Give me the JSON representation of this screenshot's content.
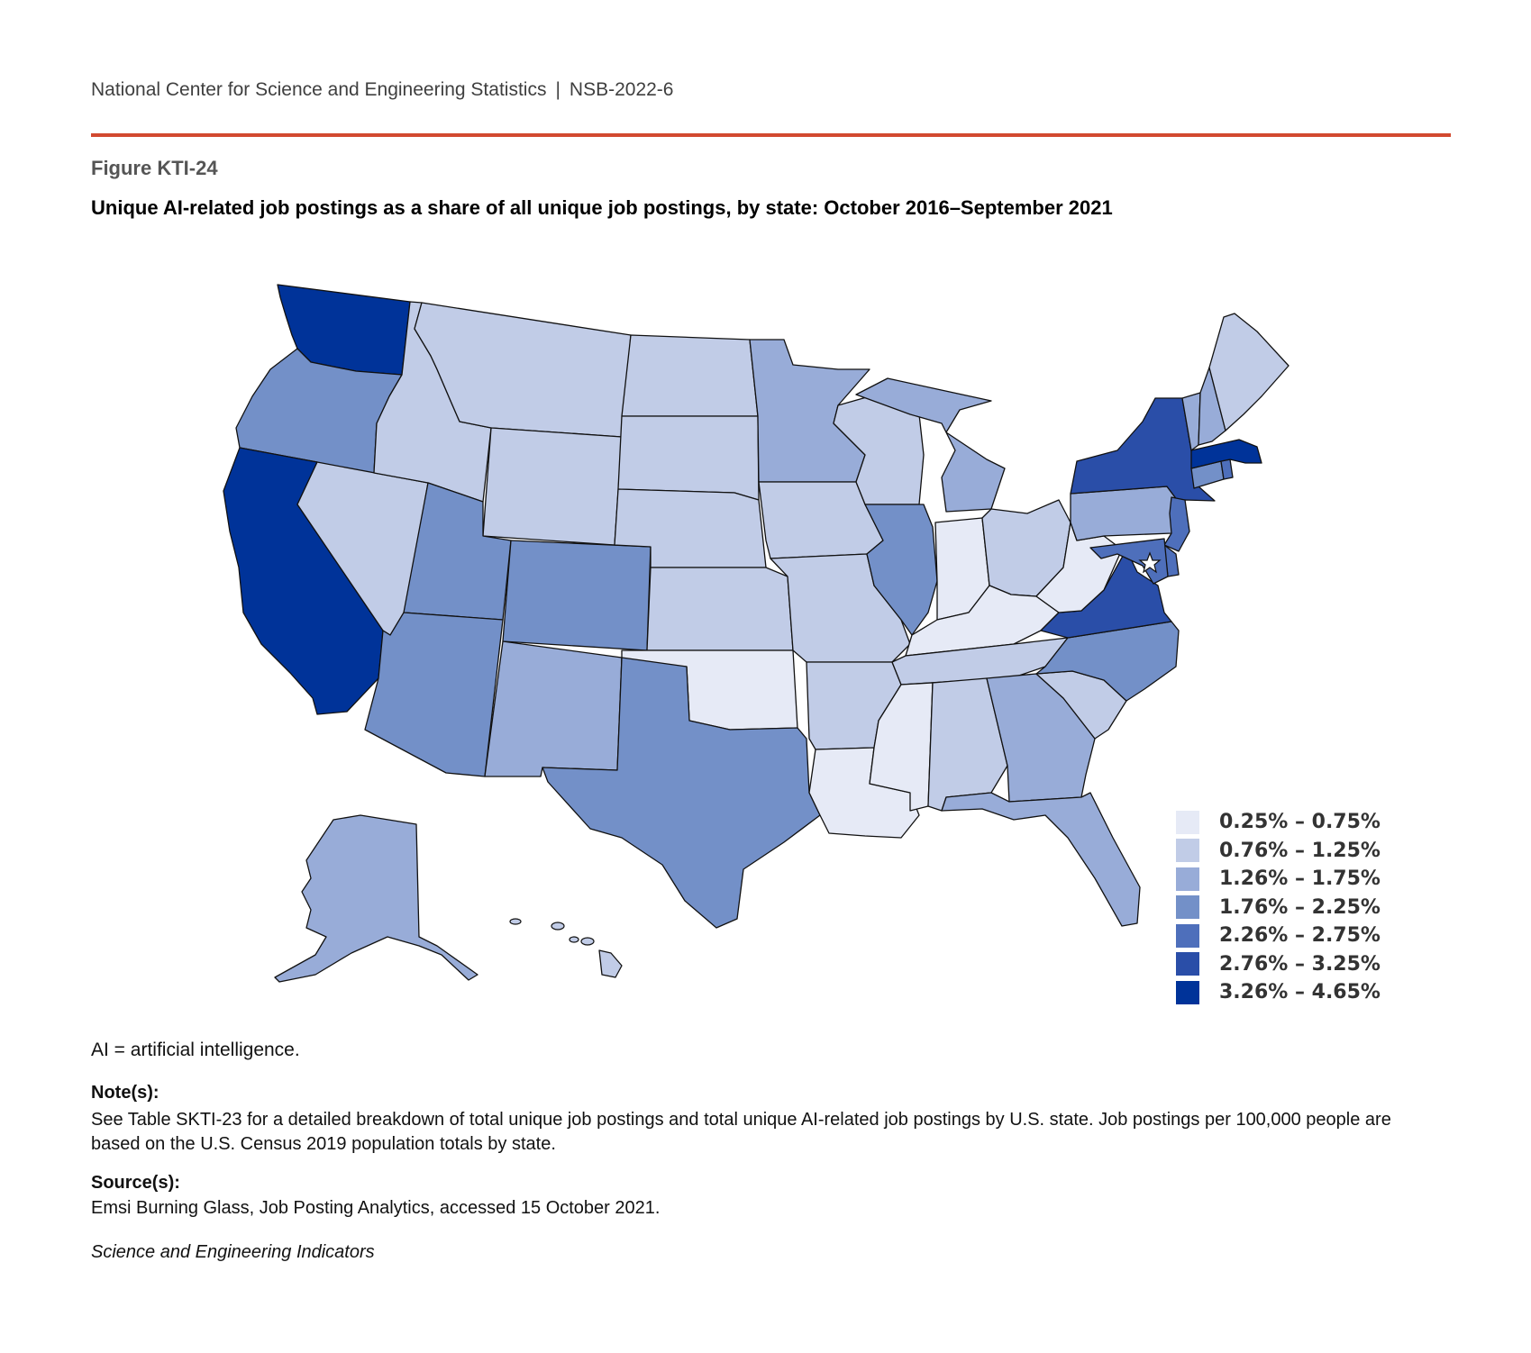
{
  "header": {
    "org": "National Center for Science and Engineering Statistics",
    "separator": "|",
    "report_id": "NSB-2022-6"
  },
  "figure": {
    "label": "Figure KTI-24",
    "title": "Unique AI-related job postings as a share of all unique job postings, by state: October 2016–September 2021"
  },
  "legend": {
    "bins": [
      {
        "label": "0.25% – 0.75%",
        "color": "#e6eaf6"
      },
      {
        "label": "0.76% – 1.25%",
        "color": "#c1cce7"
      },
      {
        "label": "1.26% – 1.75%",
        "color": "#98acd8"
      },
      {
        "label": "1.76% – 2.25%",
        "color": "#7390c8"
      },
      {
        "label": "2.26% – 2.75%",
        "color": "#4e6fbb"
      },
      {
        "label": "2.76% – 3.25%",
        "color": "#2a4ea8"
      },
      {
        "label": "3.26% – 4.65%",
        "color": "#003399"
      }
    ]
  },
  "state_bins": {
    "WA": 6,
    "OR": 3,
    "CA": 6,
    "ID": 1,
    "NV": 1,
    "MT": 1,
    "WY": 1,
    "UT": 3,
    "AZ": 3,
    "CO": 3,
    "NM": 2,
    "ND": 1,
    "SD": 1,
    "NE": 1,
    "KS": 1,
    "OK": 0,
    "TX": 3,
    "MN": 2,
    "IA": 1,
    "MO": 1,
    "AR": 1,
    "LA": 0,
    "WI": 1,
    "IL": 3,
    "MI": 2,
    "IN": 0,
    "OH": 1,
    "KY": 0,
    "TN": 1,
    "MS": 0,
    "AL": 1,
    "GA": 2,
    "FL": 2,
    "SC": 1,
    "NC": 3,
    "VA": 5,
    "WV": 0,
    "PA": 2,
    "NY": 5,
    "NJ": 4,
    "DE": 4,
    "MD": 4,
    "DC": 6,
    "CT": 3,
    "RI": 4,
    "MA": 6,
    "VT": 2,
    "NH": 2,
    "ME": 1,
    "AK": 2,
    "HI": 1
  },
  "notes": {
    "abbreviation": "AI = artificial intelligence.",
    "note_heading": "Note(s):",
    "note_text": "See Table SKTI-23 for a detailed breakdown of total unique job postings and total unique AI-related job postings by U.S. state. Job postings per 100,000 people are based on the U.S. Census 2019 population totals by state.",
    "source_heading": "Source(s):",
    "source_text": "Emsi Burning Glass, Job Posting Analytics, accessed 15 October 2021.",
    "series": "Science and Engineering Indicators"
  }
}
